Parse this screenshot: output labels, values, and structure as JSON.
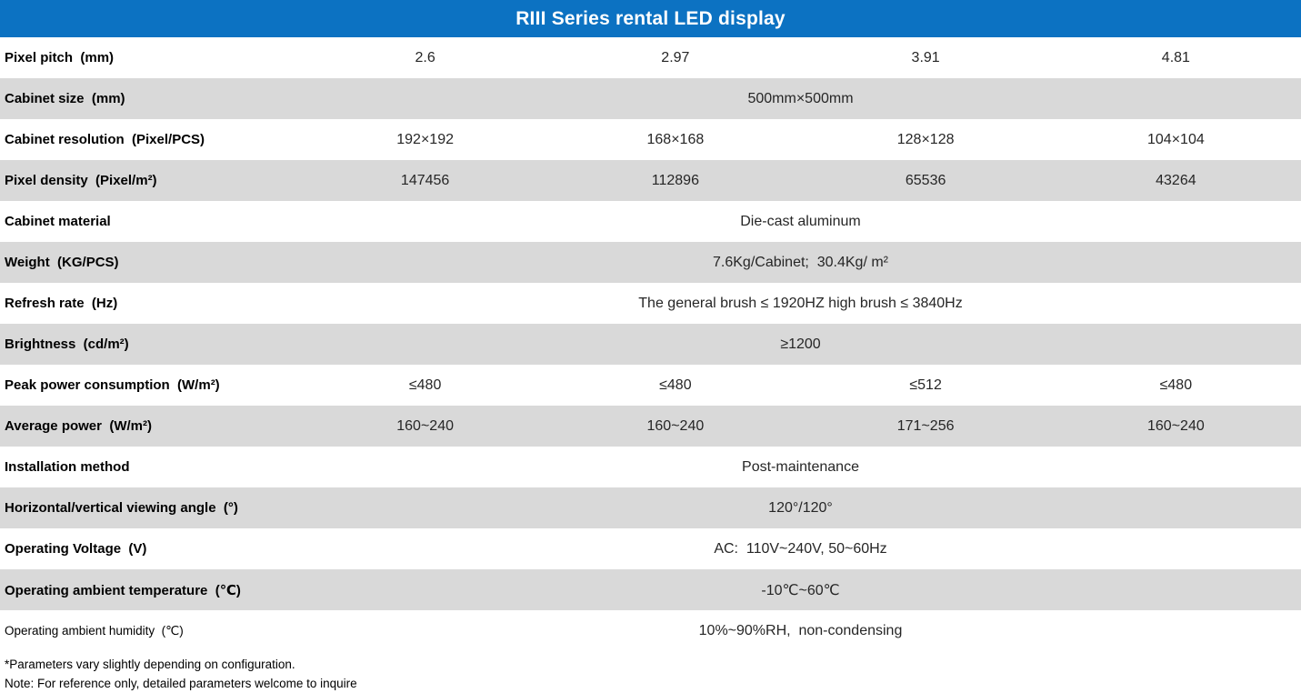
{
  "title": "RIII Series rental LED display",
  "colors": {
    "header_bg": "#0C72C2",
    "header_text": "#FFFFFF",
    "shaded_row_bg": "#D9D9D9",
    "label_text": "#000000",
    "value_text": "#262626"
  },
  "table": {
    "rows": [
      {
        "label": "Pixel pitch  (mm)",
        "values": [
          "2.6",
          "2.97",
          "3.91",
          "4.81"
        ]
      },
      {
        "label": "Cabinet size  (mm)",
        "value": "500mm×500mm"
      },
      {
        "label": "Cabinet resolution  (Pixel/PCS)",
        "values": [
          "192×192",
          "168×168",
          "128×128",
          "104×104"
        ]
      },
      {
        "label": "Pixel density  (Pixel/m²)",
        "values": [
          "147456",
          "112896",
          "65536",
          "43264"
        ]
      },
      {
        "label": "Cabinet material",
        "value": "Die-cast aluminum"
      },
      {
        "label": "Weight  (KG/PCS)",
        "value": "7.6Kg/Cabinet;  30.4Kg/ m²"
      },
      {
        "label": "Refresh rate  (Hz)",
        "value": "The general brush ≤ 1920HZ high brush ≤ 3840Hz"
      },
      {
        "label": "Brightness  (cd/m²)",
        "value": "≥1200"
      },
      {
        "label": "Peak power consumption  (W/m²)",
        "values": [
          "≤480",
          "≤480",
          "≤512",
          "≤480"
        ]
      },
      {
        "label": "Average power  (W/m²)",
        "values": [
          "160~240",
          "160~240",
          "171~256",
          "160~240"
        ]
      },
      {
        "label": "Installation method",
        "value": "Post-maintenance"
      },
      {
        "label": "Horizontal/vertical viewing angle  (°)",
        "value": "120°/120°"
      },
      {
        "label": "Operating Voltage  (V)",
        "value": "AC:  110V~240V, 50~60Hz"
      },
      {
        "label": "Operating ambient temperature  (℃)",
        "value": "-10℃~60℃"
      },
      {
        "label": "Operating ambient humidity  (℃)",
        "value": "10%~90%RH,  non-condensing"
      }
    ]
  },
  "footnotes": [
    "*Parameters vary slightly depending on configuration.",
    "Note: For reference only, detailed parameters welcome to inquire"
  ]
}
